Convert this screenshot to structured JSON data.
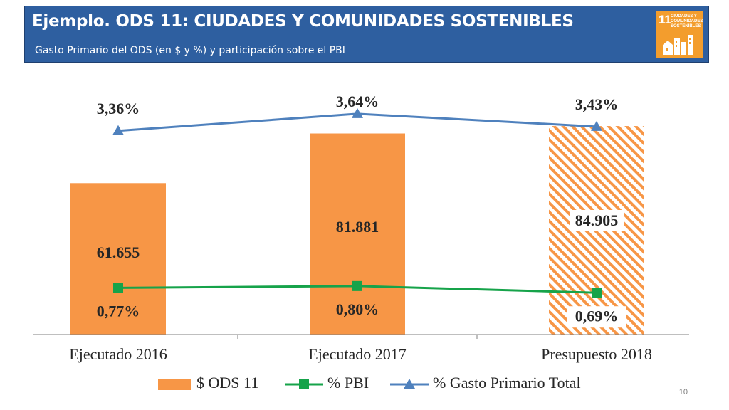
{
  "header": {
    "title": "Ejemplo. ODS 11: CIUDADES Y COMUNIDADES SOSTENIBLES",
    "subtitle": "Gasto Primario del ODS (en $ y %) y participación sobre el PBI",
    "badge_number": "11",
    "badge_text": "CIUDADES Y COMUNIDADES SOSTENIBLES",
    "badge_color": "#f39d2d",
    "header_color": "#2e5fa0"
  },
  "page_number": "10",
  "chart_data": {
    "type": "bar",
    "categories": [
      "Ejecutado 2016",
      "Ejecutado 2017",
      "Presupuesto 2018"
    ],
    "series": [
      {
        "name": "$ ODS 11",
        "kind": "bar",
        "color": "#f79646",
        "values": [
          61655,
          81881,
          84905
        ],
        "labels": [
          "61.655",
          "81.881",
          "84.905"
        ],
        "hatched": [
          false,
          false,
          true
        ]
      },
      {
        "name": "% PBI",
        "kind": "line",
        "marker": "square",
        "color": "#16a34a",
        "values": [
          0.77,
          0.8,
          0.69
        ],
        "labels": [
          "0,77%",
          "0,80%",
          "0,69%"
        ]
      },
      {
        "name": "% Gasto Primario Total",
        "kind": "line",
        "marker": "triangle",
        "color": "#4f81bd",
        "values": [
          3.36,
          3.64,
          3.43
        ],
        "labels": [
          "3,36%",
          "3,64%",
          "3,43%"
        ]
      }
    ],
    "bar_axis_range": [
      0,
      100000
    ],
    "pct_axis_range": [
      0,
      4.05
    ],
    "legend_position": "bottom",
    "grid": false
  }
}
